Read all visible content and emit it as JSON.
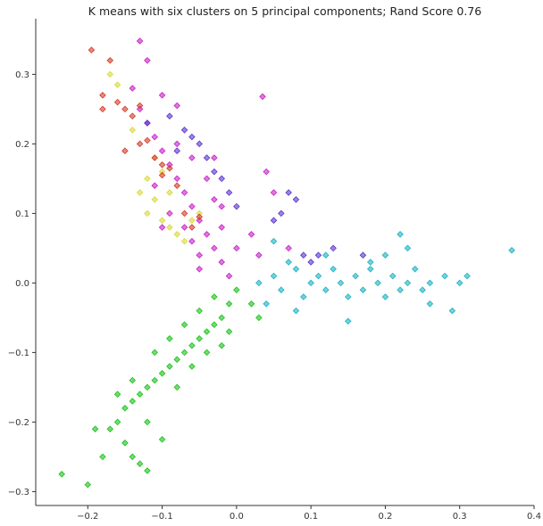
{
  "chart_data": {
    "type": "scatter",
    "title": "K means with six clusters on 5 principal components; Rand Score 0.76",
    "xlabel": "",
    "ylabel": "",
    "xlim": [
      -0.27,
      0.4
    ],
    "ylim": [
      -0.32,
      0.38
    ],
    "xticks": [
      -0.2,
      -0.1,
      0.0,
      0.1,
      0.2,
      0.3,
      0.4
    ],
    "xtick_labels": [
      "−0.2",
      "−0.1",
      "0.0",
      "0.1",
      "0.2",
      "0.3",
      "0.4"
    ],
    "yticks": [
      -0.3,
      -0.2,
      -0.1,
      0.0,
      0.1,
      0.2,
      0.3
    ],
    "ytick_labels": [
      "−0.3",
      "−0.2",
      "−0.1",
      "0.0",
      "0.1",
      "0.2",
      "0.3"
    ],
    "grid": false,
    "legend": "none",
    "marker": "diamond",
    "series": [
      {
        "color": "#1ab1c4",
        "arm": "horizontal arm, positive x",
        "points": [
          [
            0.03,
            0.0
          ],
          [
            0.05,
            0.01
          ],
          [
            0.06,
            -0.01
          ],
          [
            0.08,
            0.02
          ],
          [
            0.09,
            -0.02
          ],
          [
            0.1,
            0.0
          ],
          [
            0.11,
            0.01
          ],
          [
            0.12,
            -0.01
          ],
          [
            0.13,
            0.02
          ],
          [
            0.14,
            0.0
          ],
          [
            0.15,
            -0.02
          ],
          [
            0.16,
            0.01
          ],
          [
            0.17,
            -0.01
          ],
          [
            0.18,
            0.02
          ],
          [
            0.19,
            0.0
          ],
          [
            0.2,
            -0.02
          ],
          [
            0.21,
            0.01
          ],
          [
            0.22,
            -0.01
          ],
          [
            0.23,
            0.0
          ],
          [
            0.24,
            0.02
          ],
          [
            0.25,
            -0.01
          ],
          [
            0.26,
            0.0
          ],
          [
            0.28,
            0.01
          ],
          [
            0.3,
            0.0
          ],
          [
            0.31,
            0.01
          ],
          [
            0.37,
            0.047
          ],
          [
            0.22,
            0.07
          ],
          [
            0.23,
            0.05
          ],
          [
            0.29,
            -0.04
          ],
          [
            0.15,
            -0.055
          ],
          [
            0.05,
            0.06
          ],
          [
            0.07,
            0.03
          ],
          [
            0.04,
            -0.03
          ],
          [
            0.08,
            -0.04
          ],
          [
            0.12,
            0.04
          ],
          [
            0.18,
            0.03
          ],
          [
            0.26,
            -0.03
          ],
          [
            0.2,
            0.04
          ]
        ]
      },
      {
        "color": "#19c219",
        "arm": "lower-left arm",
        "points": [
          [
            0.0,
            -0.01
          ],
          [
            -0.01,
            -0.03
          ],
          [
            -0.02,
            -0.05
          ],
          [
            -0.03,
            -0.06
          ],
          [
            -0.04,
            -0.07
          ],
          [
            -0.05,
            -0.08
          ],
          [
            -0.06,
            -0.09
          ],
          [
            -0.07,
            -0.1
          ],
          [
            -0.08,
            -0.11
          ],
          [
            -0.09,
            -0.12
          ],
          [
            -0.1,
            -0.13
          ],
          [
            -0.11,
            -0.14
          ],
          [
            -0.12,
            -0.15
          ],
          [
            -0.13,
            -0.16
          ],
          [
            -0.14,
            -0.17
          ],
          [
            -0.15,
            -0.18
          ],
          [
            -0.16,
            -0.2
          ],
          [
            -0.17,
            -0.21
          ],
          [
            -0.15,
            -0.23
          ],
          [
            -0.14,
            -0.25
          ],
          [
            -0.13,
            -0.26
          ],
          [
            -0.12,
            -0.27
          ],
          [
            -0.2,
            -0.29
          ],
          [
            -0.235,
            -0.275
          ],
          [
            -0.19,
            -0.21
          ],
          [
            -0.1,
            -0.225
          ],
          [
            -0.02,
            -0.09
          ],
          [
            0.02,
            -0.03
          ],
          [
            -0.05,
            -0.04
          ],
          [
            -0.06,
            -0.12
          ],
          [
            -0.09,
            -0.08
          ],
          [
            -0.03,
            -0.02
          ],
          [
            0.03,
            -0.05
          ],
          [
            -0.11,
            -0.1
          ],
          [
            -0.08,
            -0.15
          ],
          [
            -0.12,
            -0.2
          ],
          [
            -0.14,
            -0.14
          ],
          [
            -0.04,
            -0.1
          ],
          [
            -0.07,
            -0.06
          ],
          [
            -0.01,
            -0.07
          ],
          [
            -0.16,
            -0.16
          ],
          [
            -0.18,
            -0.25
          ]
        ]
      },
      {
        "color": "#c71fc7",
        "arm": "upper-left arm",
        "points": [
          [
            -0.01,
            0.01
          ],
          [
            -0.02,
            0.03
          ],
          [
            -0.03,
            0.05
          ],
          [
            -0.04,
            0.07
          ],
          [
            -0.05,
            0.09
          ],
          [
            -0.06,
            0.11
          ],
          [
            -0.07,
            0.13
          ],
          [
            -0.08,
            0.15
          ],
          [
            -0.09,
            0.17
          ],
          [
            -0.1,
            0.19
          ],
          [
            -0.11,
            0.21
          ],
          [
            -0.12,
            0.23
          ],
          [
            -0.13,
            0.25
          ],
          [
            -0.14,
            0.28
          ],
          [
            -0.13,
            0.348
          ],
          [
            -0.12,
            0.32
          ],
          [
            -0.1,
            0.27
          ],
          [
            -0.08,
            0.255
          ],
          [
            0.035,
            0.268
          ],
          [
            0.04,
            0.16
          ],
          [
            0.05,
            0.13
          ],
          [
            0.02,
            0.07
          ],
          [
            0.03,
            0.04
          ],
          [
            -0.02,
            0.08
          ],
          [
            -0.05,
            0.04
          ],
          [
            -0.07,
            0.08
          ],
          [
            -0.03,
            0.12
          ],
          [
            -0.09,
            0.1
          ],
          [
            -0.04,
            0.15
          ],
          [
            -0.06,
            0.18
          ],
          [
            -0.11,
            0.14
          ],
          [
            -0.08,
            0.2
          ],
          [
            -0.02,
            0.11
          ],
          [
            0.0,
            0.05
          ],
          [
            -0.05,
            0.02
          ],
          [
            -0.1,
            0.08
          ],
          [
            -0.06,
            0.06
          ],
          [
            0.07,
            0.05
          ],
          [
            -0.03,
            0.18
          ]
        ]
      },
      {
        "color": "#5a33cc",
        "arm": "upper cluster, right of magenta arm",
        "points": [
          [
            -0.09,
            0.24
          ],
          [
            -0.07,
            0.22
          ],
          [
            -0.06,
            0.21
          ],
          [
            -0.05,
            0.2
          ],
          [
            -0.04,
            0.18
          ],
          [
            -0.03,
            0.16
          ],
          [
            -0.02,
            0.15
          ],
          [
            -0.01,
            0.13
          ],
          [
            0.0,
            0.11
          ],
          [
            0.06,
            0.1
          ],
          [
            0.07,
            0.13
          ],
          [
            0.08,
            0.12
          ],
          [
            0.09,
            0.04
          ],
          [
            0.1,
            0.03
          ],
          [
            0.13,
            0.05
          ],
          [
            0.17,
            0.04
          ],
          [
            0.11,
            0.04
          ],
          [
            0.05,
            0.09
          ],
          [
            -0.12,
            0.23
          ],
          [
            -0.08,
            0.19
          ]
        ]
      },
      {
        "color": "#d9d93a",
        "arm": "overlap band within upper-left arm",
        "points": [
          [
            -0.17,
            0.3
          ],
          [
            -0.16,
            0.285
          ],
          [
            -0.14,
            0.22
          ],
          [
            -0.12,
            0.15
          ],
          [
            -0.13,
            0.13
          ],
          [
            -0.11,
            0.12
          ],
          [
            -0.12,
            0.1
          ],
          [
            -0.1,
            0.09
          ],
          [
            -0.09,
            0.08
          ],
          [
            -0.08,
            0.07
          ],
          [
            -0.07,
            0.06
          ],
          [
            -0.06,
            0.09
          ],
          [
            -0.05,
            0.1
          ],
          [
            -0.1,
            0.16
          ],
          [
            -0.11,
            0.18
          ],
          [
            -0.09,
            0.13
          ]
        ]
      },
      {
        "color": "#d43b2a",
        "arm": "tip of upper-left arm",
        "points": [
          [
            -0.195,
            0.335
          ],
          [
            -0.17,
            0.32
          ],
          [
            -0.18,
            0.27
          ],
          [
            -0.18,
            0.25
          ],
          [
            -0.16,
            0.26
          ],
          [
            -0.15,
            0.25
          ],
          [
            -0.13,
            0.255
          ],
          [
            -0.14,
            0.24
          ],
          [
            -0.13,
            0.2
          ],
          [
            -0.12,
            0.205
          ],
          [
            -0.11,
            0.18
          ],
          [
            -0.1,
            0.17
          ],
          [
            -0.09,
            0.165
          ],
          [
            -0.1,
            0.155
          ],
          [
            -0.08,
            0.14
          ],
          [
            -0.07,
            0.1
          ],
          [
            -0.06,
            0.08
          ],
          [
            -0.05,
            0.095
          ],
          [
            -0.15,
            0.19
          ]
        ]
      }
    ]
  }
}
